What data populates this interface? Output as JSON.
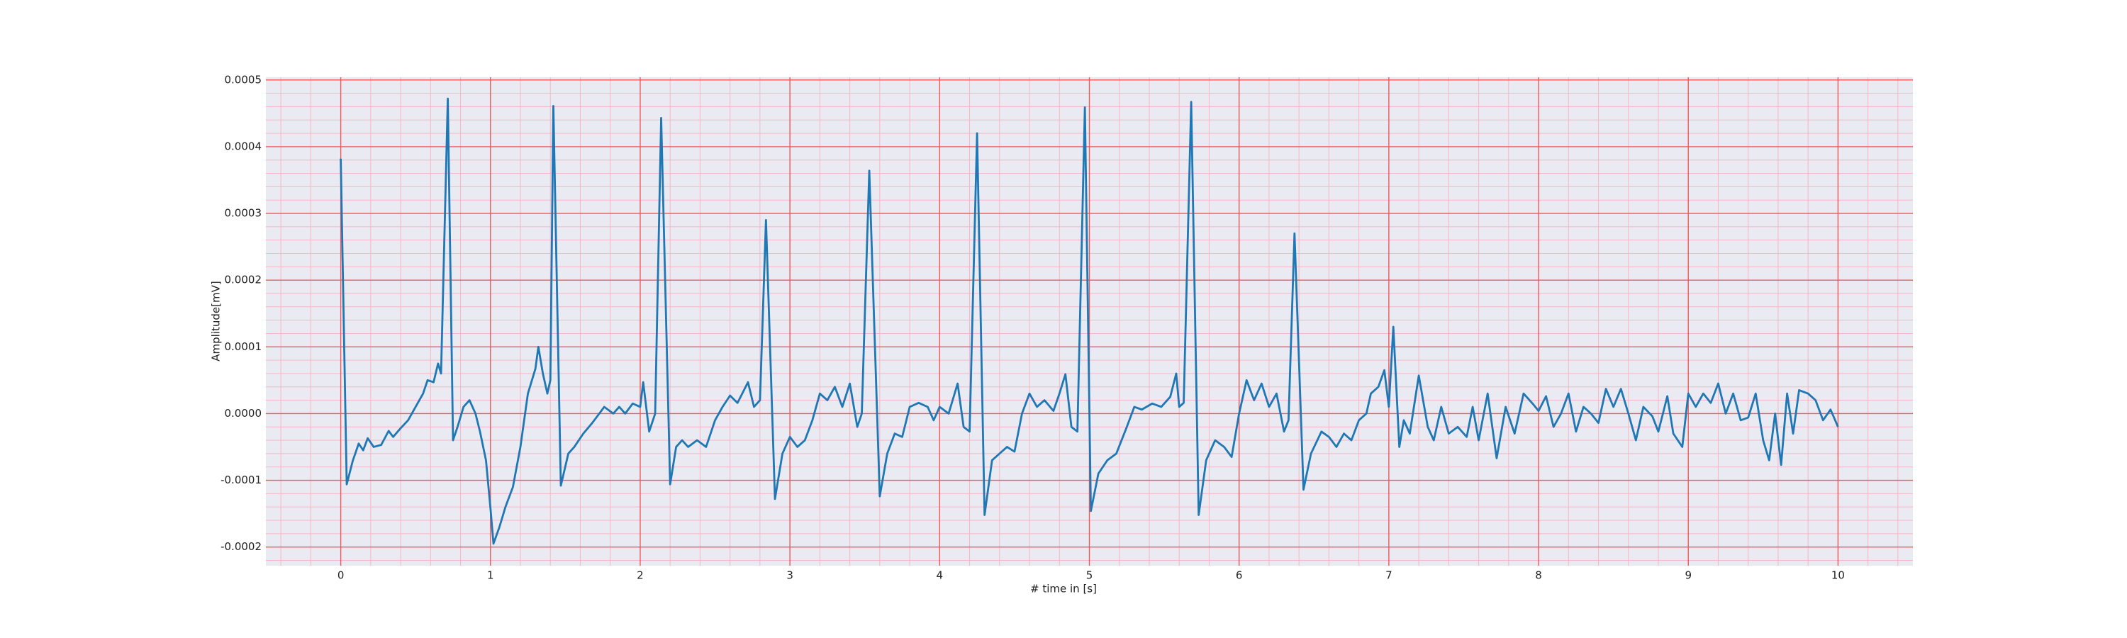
{
  "chart_data": {
    "type": "line",
    "x_label": "# time in [s]",
    "y_label": "Amplitude[mV]",
    "color": "#1f77b4",
    "xlim": [
      -0.5,
      10.5
    ],
    "ylim": [
      -0.000228,
      0.000504
    ],
    "xticks": [
      0,
      1,
      2,
      3,
      4,
      5,
      6,
      7,
      8,
      9,
      10
    ],
    "yticks": [
      -0.0002,
      -0.0001,
      {
        "value": 0,
        "label": "0.0000"
      },
      0.0001,
      0.0002,
      0.0003,
      0.0004,
      0.0005
    ],
    "grid": true,
    "minor_grid": true,
    "x": [
      0,
      0.04,
      0.08,
      0.12,
      0.15,
      0.18,
      0.22,
      0.27,
      0.32,
      0.35,
      0.4,
      0.45,
      0.5,
      0.55,
      0.58,
      0.62,
      0.65,
      0.67,
      0.715,
      0.75,
      0.78,
      0.82,
      0.86,
      0.9,
      0.93,
      0.97,
      1.0,
      1.02,
      1.06,
      1.1,
      1.15,
      1.2,
      1.25,
      1.3,
      1.32,
      1.35,
      1.38,
      1.4,
      1.42,
      1.47,
      1.52,
      1.56,
      1.62,
      1.68,
      1.72,
      1.76,
      1.82,
      1.86,
      1.9,
      1.95,
      2.0,
      2.02,
      2.06,
      2.1,
      2.14,
      2.2,
      2.24,
      2.28,
      2.32,
      2.38,
      2.44,
      2.5,
      2.55,
      2.6,
      2.65,
      2.72,
      2.76,
      2.8,
      2.84,
      2.9,
      2.95,
      3.0,
      3.05,
      3.1,
      3.15,
      3.2,
      3.25,
      3.3,
      3.35,
      3.4,
      3.45,
      3.48,
      3.53,
      3.6,
      3.65,
      3.7,
      3.75,
      3.8,
      3.86,
      3.92,
      3.96,
      4.0,
      4.06,
      4.12,
      4.16,
      4.2,
      4.25,
      4.3,
      4.35,
      4.4,
      4.45,
      4.5,
      4.55,
      4.6,
      4.65,
      4.7,
      4.76,
      4.8,
      4.84,
      4.88,
      4.92,
      4.97,
      5.01,
      5.06,
      5.12,
      5.18,
      5.25,
      5.3,
      5.35,
      5.42,
      5.48,
      5.54,
      5.58,
      5.6,
      5.63,
      5.68,
      5.73,
      5.78,
      5.84,
      5.9,
      5.95,
      6.0,
      6.05,
      6.1,
      6.15,
      6.2,
      6.25,
      6.3,
      6.33,
      6.37,
      6.43,
      6.48,
      6.55,
      6.6,
      6.65,
      6.7,
      6.75,
      6.8,
      6.85,
      6.88,
      6.93,
      6.97,
      7.0,
      7.03,
      7.07,
      7.1,
      7.14,
      7.2,
      7.26,
      7.3,
      7.35,
      7.4,
      7.46,
      7.52,
      7.56,
      7.6,
      7.66,
      7.72,
      7.78,
      7.84,
      7.9,
      7.96,
      8.0,
      8.05,
      8.1,
      8.15,
      8.2,
      8.25,
      8.3,
      8.35,
      8.4,
      8.45,
      8.5,
      8.55,
      8.6,
      8.65,
      8.7,
      8.76,
      8.8,
      8.86,
      8.9,
      8.96,
      9.0,
      9.05,
      9.1,
      9.15,
      9.2,
      9.25,
      9.3,
      9.35,
      9.4,
      9.45,
      9.5,
      9.54,
      9.58,
      9.62,
      9.66,
      9.7,
      9.74,
      9.8,
      9.85,
      9.9,
      9.95,
      10.0
    ],
    "values": [
      0.000382,
      -0.000106,
      -7.1e-05,
      -4.5e-05,
      -5.5e-05,
      -3.7e-05,
      -5e-05,
      -4.7e-05,
      -2.6e-05,
      -3.5e-05,
      -2.2e-05,
      -1e-05,
      1e-05,
      3e-05,
      5e-05,
      4.7e-05,
      7.5e-05,
      6e-05,
      0.000472,
      -4e-05,
      -2e-05,
      1e-05,
      2e-05,
      0,
      -2.7e-05,
      -7e-05,
      -0.000142,
      -0.000195,
      -0.00017,
      -0.00014,
      -0.00011,
      -5e-05,
      3e-05,
      6.7e-05,
      0.0001,
      6e-05,
      3e-05,
      5e-05,
      0.000461,
      -0.000108,
      -6e-05,
      -5e-05,
      -3e-05,
      -1.4e-05,
      -2e-06,
      1e-05,
      0,
      1e-05,
      0,
      1.5e-05,
      1e-05,
      4.7e-05,
      -2.7e-05,
      0,
      0.000443,
      -0.000106,
      -5e-05,
      -4e-05,
      -5e-05,
      -4e-05,
      -5e-05,
      -1e-05,
      1e-05,
      2.7e-05,
      1.6e-05,
      4.7e-05,
      1e-05,
      2e-05,
      0.00029,
      -0.000128,
      -6e-05,
      -3.5e-05,
      -5e-05,
      -4e-05,
      -1e-05,
      3e-05,
      2e-05,
      4e-05,
      1e-05,
      4.5e-05,
      -2e-05,
      0,
      0.000364,
      -0.000124,
      -6e-05,
      -3e-05,
      -3.5e-05,
      1e-05,
      1.6e-05,
      1e-05,
      -1e-05,
      1e-05,
      0,
      4.5e-05,
      -2e-05,
      -2.7e-05,
      0.00042,
      -0.000152,
      -7e-05,
      -6e-05,
      -5e-05,
      -5.7e-05,
      0,
      3e-05,
      1e-05,
      2e-05,
      4e-06,
      3e-05,
      5.9e-05,
      -2e-05,
      -2.7e-05,
      0.000459,
      -0.000146,
      -9e-05,
      -7e-05,
      -6e-05,
      -2e-05,
      1e-05,
      6e-06,
      1.5e-05,
      1e-05,
      2.5e-05,
      6e-05,
      1e-05,
      1.6e-05,
      0.000467,
      -0.000152,
      -7e-05,
      -4e-05,
      -5e-05,
      -6.5e-05,
      0,
      5e-05,
      2e-05,
      4.5e-05,
      1e-05,
      3e-05,
      -2.7e-05,
      -1e-05,
      0.00027,
      -0.000114,
      -6e-05,
      -2.7e-05,
      -3.5e-05,
      -5e-05,
      -3e-05,
      -4e-05,
      -1e-05,
      0,
      3e-05,
      4e-05,
      6.5e-05,
      1e-05,
      0.00013,
      -5e-05,
      -1e-05,
      -3e-05,
      5.7e-05,
      -2e-05,
      -4e-05,
      1e-05,
      -3e-05,
      -2e-05,
      -3.5e-05,
      1e-05,
      -4e-05,
      3e-05,
      -6.7e-05,
      1e-05,
      -3e-05,
      3e-05,
      1.5e-05,
      4e-06,
      2.6e-05,
      -2e-05,
      0,
      3e-05,
      -2.7e-05,
      1e-05,
      0,
      -1.4e-05,
      3.7e-05,
      1e-05,
      3.7e-05,
      0,
      -4e-05,
      1e-05,
      -4e-06,
      -2.7e-05,
      2.6e-05,
      -3e-05,
      -5e-05,
      3e-05,
      1e-05,
      3e-05,
      1.6e-05,
      4.5e-05,
      0,
      3e-05,
      -1e-05,
      -6e-06,
      3e-05,
      -4e-05,
      -7e-05,
      0,
      -7.7e-05,
      3e-05,
      -3e-05,
      3.5e-05,
      3e-05,
      2e-05,
      -1e-05,
      6e-06,
      -2e-05
    ]
  }
}
